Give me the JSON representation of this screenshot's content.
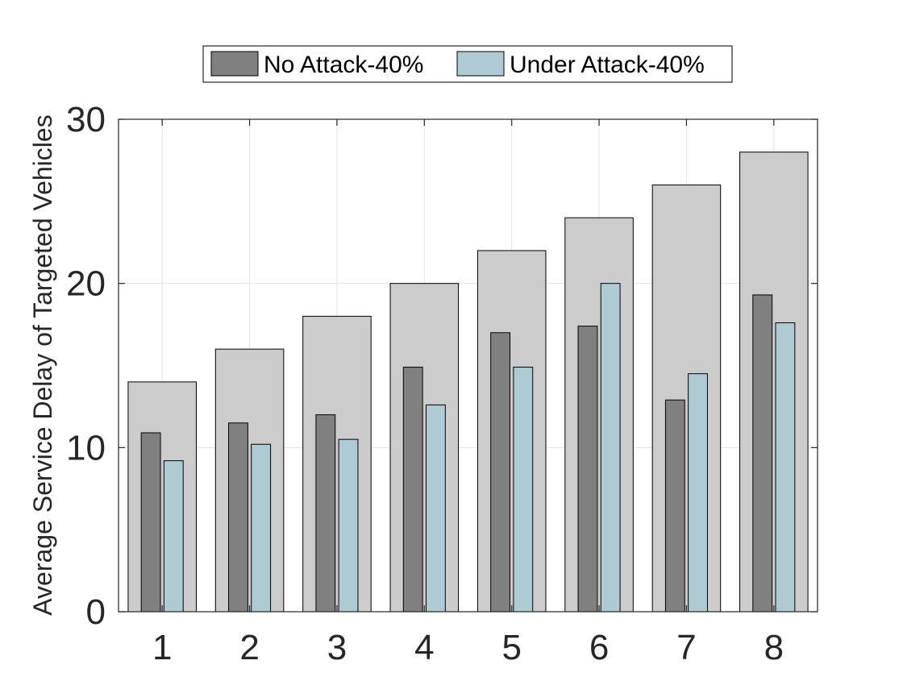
{
  "chart_data": {
    "type": "bar",
    "title": "",
    "xlabel": "",
    "ylabel": "Average Service Delay of Targeted Vehicles",
    "categories": [
      "1",
      "2",
      "3",
      "4",
      "5",
      "6",
      "7",
      "8"
    ],
    "ylim": [
      0,
      30
    ],
    "yticks": [
      "0",
      "10",
      "20",
      "30"
    ],
    "grid": true,
    "legend_position": "top-center",
    "background_bars": {
      "color": "#cccccc",
      "values": [
        14,
        16,
        18,
        20,
        22,
        24,
        26,
        28
      ]
    },
    "series": [
      {
        "name": "No Attack-40%",
        "color": "#808080",
        "values": [
          10.9,
          11.5,
          12.0,
          14.9,
          17.0,
          17.4,
          12.9,
          19.3
        ]
      },
      {
        "name": "Under Attack-40%",
        "color": "#aecbd4",
        "values": [
          9.2,
          10.2,
          10.5,
          12.6,
          14.9,
          20.0,
          14.5,
          17.6
        ]
      }
    ]
  }
}
